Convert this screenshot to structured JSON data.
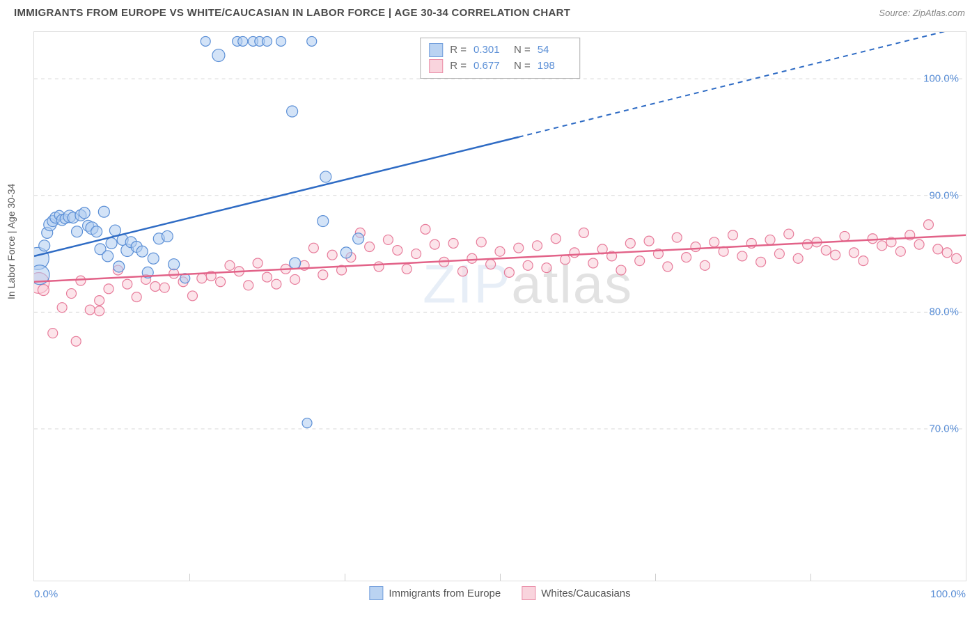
{
  "header": {
    "title": "IMMIGRANTS FROM EUROPE VS WHITE/CAUCASIAN IN LABOR FORCE | AGE 30-34 CORRELATION CHART",
    "source_label": "Source:",
    "source_name": "ZipAtlas.com"
  },
  "chart": {
    "type": "scatter",
    "ylabel": "In Labor Force | Age 30-34",
    "xlim": [
      0,
      100
    ],
    "ylim": [
      57,
      104
    ],
    "xtick_labels": [
      "0.0%",
      "100.0%"
    ],
    "ytick_positions": [
      70,
      80,
      90,
      100
    ],
    "ytick_labels": [
      "70.0%",
      "80.0%",
      "90.0%",
      "100.0%"
    ],
    "minor_xticks": [
      16.67,
      33.33,
      50,
      66.67,
      83.33
    ],
    "background_color": "#ffffff",
    "grid_color": "#d8d8d8",
    "watermark": "ZIPatlas",
    "series_blue": {
      "name": "Immigrants from Europe",
      "fill": "#aeccf0",
      "stroke": "#5b8fd6",
      "line_color": "#2e6bc4",
      "R": "0.301",
      "N": "54",
      "trend": {
        "x1": 0,
        "y1": 84.8,
        "x2_solid": 52,
        "y2_solid": 95,
        "x2_dash": 100,
        "y2_dash": 104.5
      },
      "points": [
        [
          0.4,
          84.6,
          16
        ],
        [
          0.6,
          83.2,
          14
        ],
        [
          1.1,
          85.7,
          8
        ],
        [
          1.4,
          86.8,
          8
        ],
        [
          1.7,
          87.5,
          9
        ],
        [
          2.0,
          87.8,
          8
        ],
        [
          2.3,
          88.1,
          8
        ],
        [
          2.7,
          88.3,
          7
        ],
        [
          3.0,
          87.9,
          8
        ],
        [
          3.3,
          88.0,
          7
        ],
        [
          3.8,
          88.2,
          9
        ],
        [
          4.2,
          88.1,
          8
        ],
        [
          4.6,
          86.9,
          8
        ],
        [
          5.0,
          88.3,
          8
        ],
        [
          5.4,
          88.5,
          8
        ],
        [
          5.8,
          87.4,
          8
        ],
        [
          6.2,
          87.2,
          9
        ],
        [
          6.7,
          86.9,
          8
        ],
        [
          7.1,
          85.4,
          8
        ],
        [
          7.5,
          88.6,
          8
        ],
        [
          7.9,
          84.8,
          8
        ],
        [
          8.3,
          85.9,
          8
        ],
        [
          8.7,
          87.0,
          8
        ],
        [
          9.1,
          83.9,
          8
        ],
        [
          9.5,
          86.2,
          8
        ],
        [
          10.0,
          85.3,
          9
        ],
        [
          10.4,
          86.0,
          8
        ],
        [
          11.0,
          85.6,
          8
        ],
        [
          11.6,
          85.2,
          8
        ],
        [
          12.2,
          83.4,
          8
        ],
        [
          12.8,
          84.6,
          8
        ],
        [
          13.4,
          86.3,
          8
        ],
        [
          14.3,
          86.5,
          8
        ],
        [
          15.0,
          84.1,
          8
        ],
        [
          16.2,
          82.9,
          7
        ],
        [
          18.4,
          103.2,
          7
        ],
        [
          19.8,
          102.0,
          9
        ],
        [
          21.8,
          103.2,
          7
        ],
        [
          22.4,
          103.2,
          7
        ],
        [
          23.5,
          103.2,
          7
        ],
        [
          24.2,
          103.2,
          7
        ],
        [
          25.0,
          103.2,
          7
        ],
        [
          26.5,
          103.2,
          7
        ],
        [
          27.7,
          97.2,
          8
        ],
        [
          29.8,
          103.2,
          7
        ],
        [
          31.0,
          87.8,
          8
        ],
        [
          31.3,
          91.6,
          8
        ],
        [
          28.0,
          84.2,
          8
        ],
        [
          33.5,
          85.1,
          8
        ],
        [
          34.8,
          86.3,
          8
        ],
        [
          29.3,
          70.5,
          7
        ]
      ]
    },
    "series_pink": {
      "name": "Whites/Caucasians",
      "fill": "#f9cdd8",
      "stroke": "#e77b9a",
      "line_color": "#e26288",
      "R": "0.677",
      "N": "198",
      "trend": {
        "x1": 0,
        "y1": 82.6,
        "x2": 100,
        "y2": 86.6
      },
      "points": [
        [
          0.5,
          82.5,
          15
        ],
        [
          1,
          81.9,
          8
        ],
        [
          2,
          78.2,
          7
        ],
        [
          3,
          80.4,
          7
        ],
        [
          4,
          81.6,
          7
        ],
        [
          5,
          82.7,
          7
        ],
        [
          6,
          80.2,
          7
        ],
        [
          7,
          81.0,
          7
        ],
        [
          8,
          82.0,
          7
        ],
        [
          9,
          83.6,
          7
        ],
        [
          10,
          82.4,
          7
        ],
        [
          11,
          81.3,
          7
        ],
        [
          12,
          82.8,
          7
        ],
        [
          13,
          82.2,
          7
        ],
        [
          14,
          82.1,
          7
        ],
        [
          15,
          83.3,
          7
        ],
        [
          16,
          82.6,
          7
        ],
        [
          17,
          81.4,
          7
        ],
        [
          18,
          82.9,
          7
        ],
        [
          19,
          83.1,
          7
        ],
        [
          20,
          82.6,
          7
        ],
        [
          21,
          84.0,
          7
        ],
        [
          22,
          83.5,
          7
        ],
        [
          23,
          82.3,
          7
        ],
        [
          24,
          84.2,
          7
        ],
        [
          25,
          83.0,
          7
        ],
        [
          26,
          82.4,
          7
        ],
        [
          27,
          83.7,
          7
        ],
        [
          28,
          82.8,
          7
        ],
        [
          29,
          84.0,
          7
        ],
        [
          30,
          85.5,
          7
        ],
        [
          31,
          83.2,
          7
        ],
        [
          32,
          84.9,
          7
        ],
        [
          33,
          83.6,
          7
        ],
        [
          34,
          84.7,
          7
        ],
        [
          35,
          86.8,
          7
        ],
        [
          36,
          85.6,
          7
        ],
        [
          37,
          83.9,
          7
        ],
        [
          38,
          86.2,
          7
        ],
        [
          39,
          85.3,
          7
        ],
        [
          40,
          83.7,
          7
        ],
        [
          41,
          85.0,
          7
        ],
        [
          42,
          87.1,
          7
        ],
        [
          43,
          85.8,
          7
        ],
        [
          44,
          84.3,
          7
        ],
        [
          45,
          85.9,
          7
        ],
        [
          46,
          83.5,
          7
        ],
        [
          47,
          84.6,
          7
        ],
        [
          48,
          86.0,
          7
        ],
        [
          49,
          84.1,
          7
        ],
        [
          50,
          85.2,
          7
        ],
        [
          51,
          83.4,
          7
        ],
        [
          52,
          85.5,
          7
        ],
        [
          53,
          84.0,
          7
        ],
        [
          54,
          85.7,
          7
        ],
        [
          55,
          83.8,
          7
        ],
        [
          56,
          86.3,
          7
        ],
        [
          57,
          84.5,
          7
        ],
        [
          58,
          85.1,
          7
        ],
        [
          59,
          86.8,
          7
        ],
        [
          60,
          84.2,
          7
        ],
        [
          61,
          85.4,
          7
        ],
        [
          62,
          84.8,
          7
        ],
        [
          63,
          83.6,
          7
        ],
        [
          64,
          85.9,
          7
        ],
        [
          65,
          84.4,
          7
        ],
        [
          66,
          86.1,
          7
        ],
        [
          67,
          85.0,
          7
        ],
        [
          68,
          83.9,
          7
        ],
        [
          69,
          86.4,
          7
        ],
        [
          70,
          84.7,
          7
        ],
        [
          71,
          85.6,
          7
        ],
        [
          72,
          84.0,
          7
        ],
        [
          73,
          86.0,
          7
        ],
        [
          74,
          85.2,
          7
        ],
        [
          75,
          86.6,
          7
        ],
        [
          76,
          84.8,
          7
        ],
        [
          77,
          85.9,
          7
        ],
        [
          78,
          84.3,
          7
        ],
        [
          79,
          86.2,
          7
        ],
        [
          80,
          85.0,
          7
        ],
        [
          81,
          86.7,
          7
        ],
        [
          82,
          84.6,
          7
        ],
        [
          83,
          85.8,
          7
        ],
        [
          84,
          86.0,
          7
        ],
        [
          85,
          85.3,
          7
        ],
        [
          86,
          84.9,
          7
        ],
        [
          87,
          86.5,
          7
        ],
        [
          88,
          85.1,
          7
        ],
        [
          89,
          84.4,
          7
        ],
        [
          90,
          86.3,
          7
        ],
        [
          91,
          85.7,
          7
        ],
        [
          92,
          86.0,
          7
        ],
        [
          93,
          85.2,
          7
        ],
        [
          94,
          86.6,
          7
        ],
        [
          95,
          85.8,
          7
        ],
        [
          96,
          87.5,
          7
        ],
        [
          97,
          85.4,
          7
        ],
        [
          98,
          85.1,
          7
        ],
        [
          99,
          84.6,
          7
        ],
        [
          4.5,
          77.5,
          7
        ],
        [
          7,
          80.1,
          7
        ]
      ]
    },
    "legend_bottom": [
      {
        "label": "Immigrants from Europe",
        "fill": "#aeccf0",
        "stroke": "#5b8fd6"
      },
      {
        "label": "Whites/Caucasians",
        "fill": "#f9cdd8",
        "stroke": "#e77b9a"
      }
    ]
  }
}
